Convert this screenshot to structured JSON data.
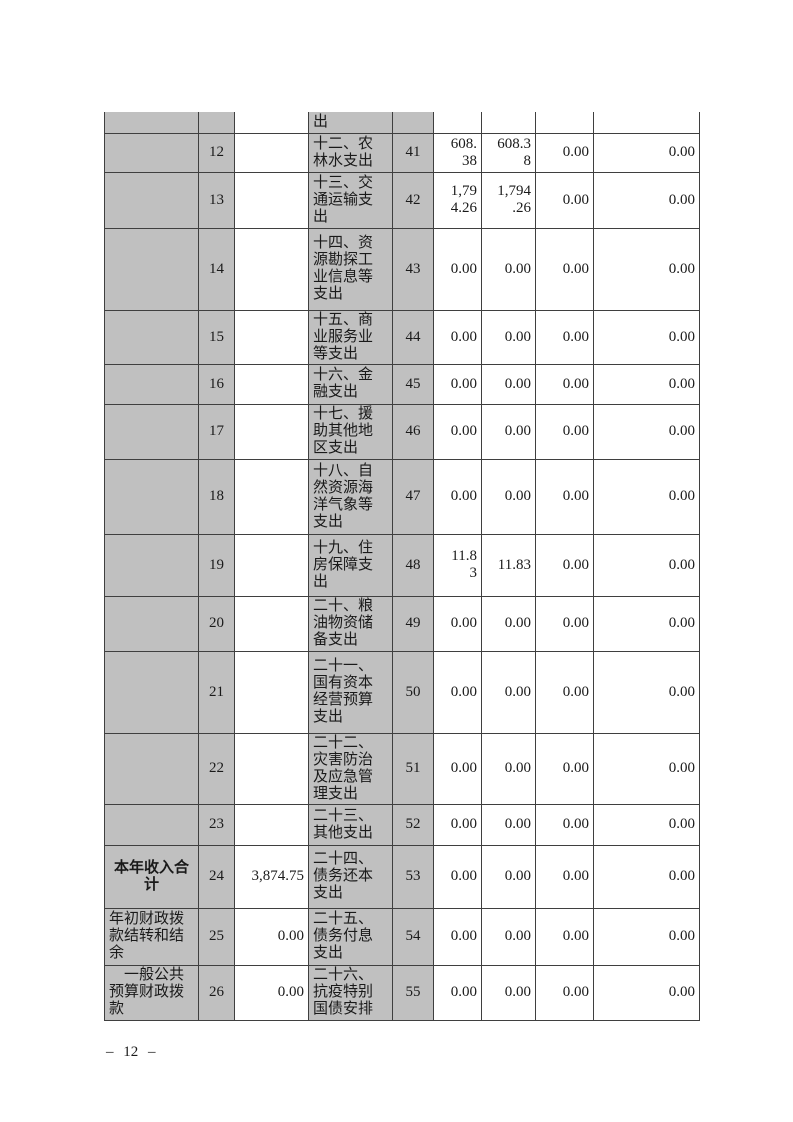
{
  "page": {
    "footer_page_number": "– 12 –"
  },
  "colors": {
    "cell_shading": "#c0c0c0",
    "table_border": "#3f3f3f",
    "page_background": "#ffffff",
    "text": "#1a1a1a"
  },
  "table": {
    "continued_row": {
      "left_label": "",
      "left_no": "",
      "left_value": "",
      "category": "出",
      "category_no": "",
      "v1": "",
      "v2": "",
      "v3": "",
      "v4": ""
    },
    "rows": [
      {
        "left_label": "",
        "left_label_align": "left",
        "left_label_bold": false,
        "left_no": "12",
        "left_value": "",
        "category": "十二、农\n林水支出",
        "category_no": "41",
        "v1": "608.\n38",
        "v2": "608.3\n8",
        "v3": "0.00",
        "v4": "0.00"
      },
      {
        "left_label": "",
        "left_label_align": "left",
        "left_label_bold": false,
        "left_no": "13",
        "left_value": "",
        "category": "十三、交\n通运输支\n出",
        "category_no": "42",
        "v1": "1,79\n4.26",
        "v2": "1,794\n.26",
        "v3": "0.00",
        "v4": "0.00"
      },
      {
        "left_label": "",
        "left_label_align": "left",
        "left_label_bold": false,
        "left_no": "14",
        "left_value": "",
        "category": "十四、资\n源勘探工\n业信息等\n支出",
        "category_no": "43",
        "v1": "0.00",
        "v2": "0.00",
        "v3": "0.00",
        "v4": "0.00"
      },
      {
        "left_label": "",
        "left_label_align": "left",
        "left_label_bold": false,
        "left_no": "15",
        "left_value": "",
        "category": "十五、商\n业服务业\n等支出",
        "category_no": "44",
        "v1": "0.00",
        "v2": "0.00",
        "v3": "0.00",
        "v4": "0.00"
      },
      {
        "left_label": "",
        "left_label_align": "left",
        "left_label_bold": false,
        "left_no": "16",
        "left_value": "",
        "category": "十六、金\n融支出",
        "category_no": "45",
        "v1": "0.00",
        "v2": "0.00",
        "v3": "0.00",
        "v4": "0.00"
      },
      {
        "left_label": "",
        "left_label_align": "left",
        "left_label_bold": false,
        "left_no": "17",
        "left_value": "",
        "category": "十七、援\n助其他地\n区支出",
        "category_no": "46",
        "v1": "0.00",
        "v2": "0.00",
        "v3": "0.00",
        "v4": "0.00"
      },
      {
        "left_label": "",
        "left_label_align": "left",
        "left_label_bold": false,
        "left_no": "18",
        "left_value": "",
        "category": "十八、自\n然资源海\n洋气象等\n支出",
        "category_no": "47",
        "v1": "0.00",
        "v2": "0.00",
        "v3": "0.00",
        "v4": "0.00"
      },
      {
        "left_label": "",
        "left_label_align": "left",
        "left_label_bold": false,
        "left_no": "19",
        "left_value": "",
        "category": "十九、住\n房保障支\n出",
        "category_no": "48",
        "v1": "11.8\n3",
        "v2": "11.83",
        "v3": "0.00",
        "v4": "0.00"
      },
      {
        "left_label": "",
        "left_label_align": "left",
        "left_label_bold": false,
        "left_no": "20",
        "left_value": "",
        "category": "二十、粮\n油物资储\n备支出",
        "category_no": "49",
        "v1": "0.00",
        "v2": "0.00",
        "v3": "0.00",
        "v4": "0.00"
      },
      {
        "left_label": "",
        "left_label_align": "left",
        "left_label_bold": false,
        "left_no": "21",
        "left_value": "",
        "category": "二十一、\n国有资本\n经营预算\n支出",
        "category_no": "50",
        "v1": "0.00",
        "v2": "0.00",
        "v3": "0.00",
        "v4": "0.00"
      },
      {
        "left_label": "",
        "left_label_align": "left",
        "left_label_bold": false,
        "left_no": "22",
        "left_value": "",
        "category": "二十二、\n灾害防治\n及应急管\n理支出",
        "category_no": "51",
        "v1": "0.00",
        "v2": "0.00",
        "v3": "0.00",
        "v4": "0.00"
      },
      {
        "left_label": "",
        "left_label_align": "left",
        "left_label_bold": false,
        "left_no": "23",
        "left_value": "",
        "category": "二十三、\n其他支出",
        "category_no": "52",
        "v1": "0.00",
        "v2": "0.00",
        "v3": "0.00",
        "v4": "0.00"
      },
      {
        "left_label": "本年收入合\n计",
        "left_label_align": "center",
        "left_label_bold": true,
        "left_no": "24",
        "left_value": "3,874.75",
        "category": "二十四、\n债务还本\n支出",
        "category_no": "53",
        "v1": "0.00",
        "v2": "0.00",
        "v3": "0.00",
        "v4": "0.00"
      },
      {
        "left_label": "年初财政拨\n款结转和结\n余",
        "left_label_align": "left",
        "left_label_bold": false,
        "left_no": "25",
        "left_value": "0.00",
        "category": "二十五、\n债务付息\n支出",
        "category_no": "54",
        "v1": "0.00",
        "v2": "0.00",
        "v3": "0.00",
        "v4": "0.00"
      },
      {
        "left_label": "　一般公共\n预算财政拨\n款",
        "left_label_align": "left",
        "left_label_bold": false,
        "left_no": "26",
        "left_value": "0.00",
        "category": "二十六、\n抗疫特别\n国债安排",
        "category_no": "55",
        "v1": "0.00",
        "v2": "0.00",
        "v3": "0.00",
        "v4": "0.00"
      }
    ]
  }
}
